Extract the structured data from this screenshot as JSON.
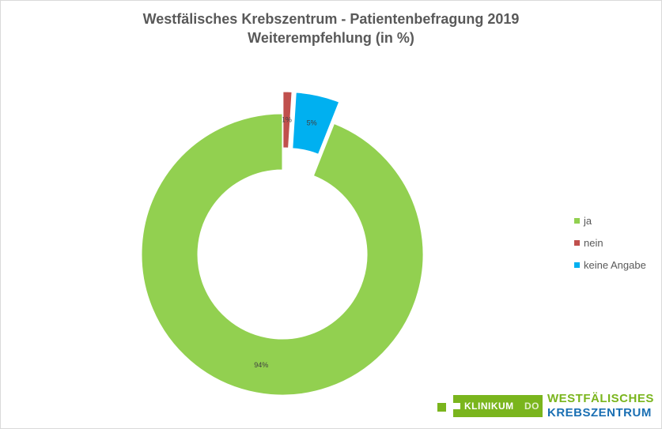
{
  "chart_data": {
    "type": "pie",
    "subtype": "doughnut",
    "title": "Westfälisches Krebszentrum - Patientenbefragung 2019",
    "subtitle": "Weiterempfehlung (in %)",
    "categories": [
      "ja",
      "nein",
      "keine Angabe"
    ],
    "values": [
      94,
      1,
      5
    ],
    "data_labels": [
      "94%",
      "1%",
      "5%"
    ],
    "colors": [
      "#92d050",
      "#c0504d",
      "#00b0f0"
    ],
    "exploded": [
      false,
      true,
      true
    ],
    "legend_position": "right"
  },
  "logo": {
    "box_text": "KLINIKUM",
    "box_suffix": "DO",
    "line1": "WESTFÄLISCHES",
    "line2": "KREBSZENTRUM"
  }
}
